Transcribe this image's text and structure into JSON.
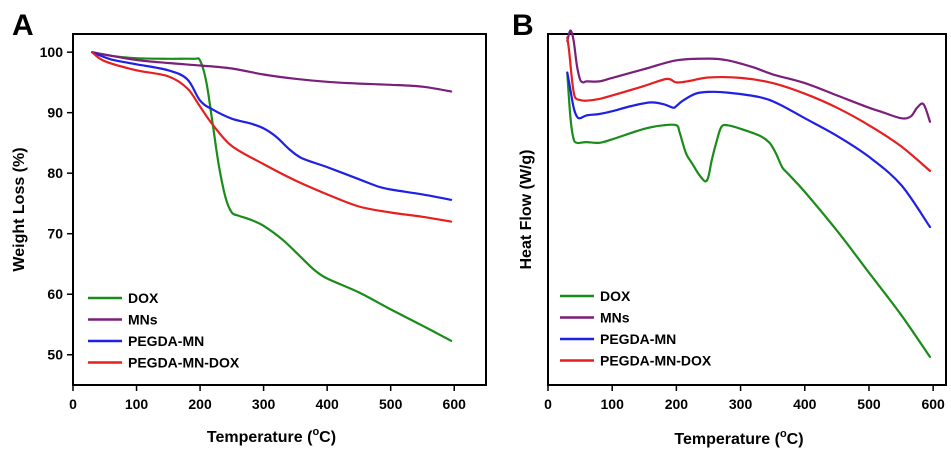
{
  "chart_data": [
    {
      "type": "line",
      "panel_label": "A",
      "xlabel_main": "Temperature (",
      "xlabel_sup": "o",
      "xlabel_end": "C)",
      "ylabel": "Weight Loss (%)",
      "xlim": [
        0,
        650
      ],
      "ylim": [
        45,
        103
      ],
      "xticks": [
        0,
        100,
        200,
        300,
        400,
        500,
        600
      ],
      "yticks": [
        50,
        60,
        70,
        80,
        90,
        100
      ],
      "legend_position": "bottom-left",
      "grid": false,
      "series": [
        {
          "name": "DOX",
          "color": "#1a8c1a",
          "x": [
            30,
            60,
            100,
            150,
            190,
            200,
            210,
            220,
            230,
            240,
            250,
            260,
            280,
            300,
            330,
            360,
            380,
            400,
            450,
            500,
            550,
            595
          ],
          "y": [
            100,
            99.4,
            99,
            98.9,
            98.9,
            98.6,
            95,
            88,
            81,
            76,
            73.5,
            73,
            72.3,
            71.3,
            69,
            66,
            64,
            62.6,
            60.3,
            57.5,
            54.8,
            52.3
          ]
        },
        {
          "name": "MNs",
          "color": "#7a1f7a",
          "x": [
            30,
            50,
            100,
            150,
            200,
            250,
            300,
            350,
            400,
            450,
            500,
            550,
            595
          ],
          "y": [
            100,
            99.6,
            98.7,
            98.2,
            97.8,
            97.3,
            96.3,
            95.6,
            95.1,
            94.8,
            94.6,
            94.3,
            93.5
          ]
        },
        {
          "name": "PEGDA-MN",
          "color": "#1f1fe6",
          "x": [
            30,
            60,
            100,
            150,
            180,
            200,
            220,
            250,
            280,
            300,
            320,
            340,
            360,
            400,
            450,
            480,
            500,
            550,
            595
          ],
          "y": [
            100,
            98.8,
            98,
            97,
            95.5,
            92,
            90.5,
            89,
            88.2,
            87.4,
            86,
            84,
            82.5,
            81,
            79,
            77.8,
            77.3,
            76.5,
            75.6
          ]
        },
        {
          "name": "PEGDA-MN-DOX",
          "color": "#e61f1f",
          "x": [
            30,
            50,
            100,
            150,
            180,
            200,
            220,
            250,
            300,
            350,
            400,
            450,
            500,
            550,
            595
          ],
          "y": [
            100,
            98.5,
            97,
            96,
            94,
            91,
            88,
            84.5,
            81.5,
            78.8,
            76.5,
            74.5,
            73.5,
            72.8,
            72
          ]
        }
      ]
    },
    {
      "type": "line",
      "panel_label": "B",
      "xlabel_main": "Temperature (",
      "xlabel_sup": "o",
      "xlabel_end": "C)",
      "ylabel": "Heat Flow (W/g)",
      "xlim": [
        0,
        620
      ],
      "ylim": [
        0,
        1
      ],
      "xticks": [
        0,
        100,
        200,
        300,
        400,
        500,
        600
      ],
      "yticks": [],
      "legend_position": "bottom-left",
      "grid": false,
      "series": [
        {
          "name": "DOX",
          "color": "#1a8c1a",
          "x": [
            30,
            35,
            40,
            45,
            50,
            60,
            80,
            100,
            150,
            180,
            200,
            205,
            215,
            225,
            235,
            245,
            250,
            255,
            262,
            270,
            280,
            300,
            330,
            345,
            355,
            365,
            375,
            400,
            450,
            500,
            550,
            595
          ],
          "y": [
            0.89,
            0.76,
            0.7,
            0.69,
            0.69,
            0.692,
            0.69,
            0.7,
            0.73,
            0.74,
            0.74,
            0.72,
            0.66,
            0.63,
            0.6,
            0.58,
            0.595,
            0.64,
            0.69,
            0.735,
            0.74,
            0.73,
            0.71,
            0.69,
            0.66,
            0.62,
            0.6,
            0.55,
            0.44,
            0.32,
            0.2,
            0.08
          ]
        },
        {
          "name": "MNs",
          "color": "#7a1f7a",
          "x": [
            30,
            35,
            40,
            45,
            50,
            55,
            60,
            80,
            100,
            150,
            200,
            250,
            280,
            320,
            350,
            400,
            450,
            500,
            520,
            550,
            565,
            575,
            585,
            595
          ],
          "y": [
            0.98,
            1.01,
            0.98,
            0.91,
            0.87,
            0.862,
            0.865,
            0.865,
            0.875,
            0.9,
            0.925,
            0.93,
            0.925,
            0.905,
            0.885,
            0.86,
            0.825,
            0.79,
            0.778,
            0.76,
            0.765,
            0.79,
            0.8,
            0.75
          ]
        },
        {
          "name": "PEGDA-MN",
          "color": "#1f1fe6",
          "x": [
            30,
            35,
            40,
            45,
            50,
            60,
            80,
            100,
            130,
            160,
            180,
            195,
            200,
            210,
            230,
            250,
            280,
            330,
            360,
            400,
            450,
            500,
            550,
            595
          ],
          "y": [
            0.89,
            0.84,
            0.79,
            0.765,
            0.76,
            0.768,
            0.772,
            0.78,
            0.795,
            0.805,
            0.8,
            0.79,
            0.795,
            0.81,
            0.83,
            0.835,
            0.833,
            0.82,
            0.8,
            0.76,
            0.71,
            0.65,
            0.57,
            0.45
          ]
        },
        {
          "name": "PEGDA-MN-DOX",
          "color": "#e61f1f",
          "x": [
            30,
            33,
            38,
            42,
            50,
            60,
            80,
            100,
            150,
            185,
            200,
            220,
            250,
            300,
            350,
            400,
            450,
            500,
            550,
            595
          ],
          "y": [
            0.99,
            0.95,
            0.86,
            0.82,
            0.812,
            0.81,
            0.815,
            0.825,
            0.852,
            0.872,
            0.862,
            0.866,
            0.876,
            0.875,
            0.86,
            0.83,
            0.79,
            0.74,
            0.68,
            0.61
          ]
        }
      ]
    }
  ]
}
